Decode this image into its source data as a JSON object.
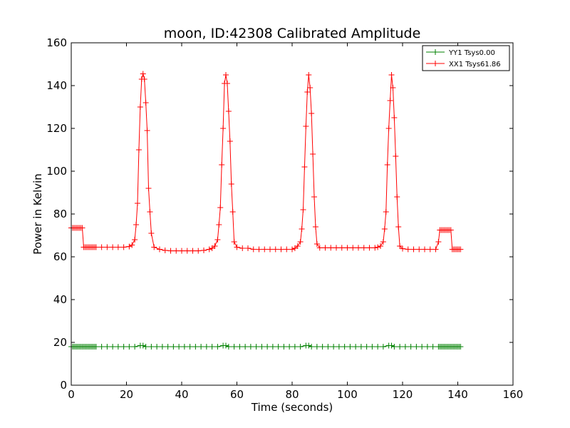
{
  "chart_data": {
    "type": "line",
    "title": "moon, ID:42308 Calibrated Amplitude",
    "xlabel": "Time (seconds)",
    "ylabel": "Power in Kelvin",
    "xlim": [
      0,
      160
    ],
    "ylim": [
      0,
      160
    ],
    "xticks": [
      0,
      20,
      40,
      60,
      80,
      100,
      120,
      140,
      160
    ],
    "yticks": [
      0,
      20,
      40,
      60,
      80,
      100,
      120,
      140,
      160
    ],
    "xtick_labels": [
      "0",
      "20",
      "40",
      "60",
      "80",
      "100",
      "120",
      "140",
      "160"
    ],
    "ytick_labels": [
      "0",
      "20",
      "40",
      "60",
      "80",
      "100",
      "120",
      "140",
      "160"
    ],
    "grid": false,
    "legend": {
      "position": "top-right"
    },
    "series": [
      {
        "name": "YY1 Tsys0.00",
        "color": "#008000",
        "marker": "+",
        "x": [
          0,
          0.5,
          1,
          1.5,
          2,
          2.5,
          3,
          3.5,
          4,
          4.5,
          5,
          5.5,
          6,
          6.5,
          7,
          7.5,
          8,
          8.5,
          9,
          11,
          13,
          15,
          17,
          19,
          21,
          23,
          25,
          26,
          27,
          29,
          31,
          33,
          35,
          37,
          39,
          41,
          43,
          45,
          47,
          49,
          51,
          53,
          55,
          56,
          57,
          59,
          61,
          63,
          65,
          67,
          69,
          71,
          73,
          75,
          77,
          79,
          81,
          83,
          85,
          86,
          87,
          89,
          91,
          93,
          95,
          97,
          99,
          101,
          103,
          105,
          107,
          109,
          111,
          113,
          115,
          116,
          117,
          119,
          121,
          123,
          125,
          127,
          129,
          131,
          133,
          133.5,
          134,
          134.5,
          135,
          135.5,
          136,
          136.5,
          137,
          137.5,
          138,
          138.5,
          139,
          139.5,
          140,
          140.5,
          141
        ],
        "y": [
          18,
          18,
          18,
          18,
          18,
          18,
          18,
          18,
          18,
          18,
          18,
          18,
          18,
          18,
          18,
          18,
          18,
          18,
          18,
          18,
          18,
          18,
          18,
          18,
          18,
          18,
          18.5,
          18.5,
          18,
          18,
          18,
          18,
          18,
          18,
          18,
          18,
          18,
          18,
          18,
          18,
          18,
          18,
          18.5,
          18.5,
          18,
          18,
          18,
          18,
          18,
          18,
          18,
          18,
          18,
          18,
          18,
          18,
          18,
          18,
          18.5,
          18.5,
          18,
          18,
          18,
          18,
          18,
          18,
          18,
          18,
          18,
          18,
          18,
          18,
          18,
          18,
          18.5,
          18.5,
          18,
          18,
          18,
          18,
          18,
          18,
          18,
          18,
          18,
          18,
          18,
          18,
          18,
          18,
          18,
          18,
          18,
          18,
          18,
          18,
          18,
          18,
          18,
          18,
          18
        ]
      },
      {
        "name": "XX1 Tsys61.86",
        "color": "#ff0000",
        "marker": "+",
        "x": [
          0,
          0.5,
          1,
          1.5,
          2,
          2.5,
          3,
          3.5,
          4,
          4.5,
          5,
          5.5,
          6,
          6.5,
          7,
          7.5,
          8,
          8.5,
          9,
          11,
          13,
          15,
          17,
          19,
          21,
          22,
          23,
          23.5,
          24,
          24.5,
          25,
          25.5,
          26,
          26.5,
          27,
          27.5,
          28,
          28.5,
          29,
          30,
          32,
          34,
          36,
          38,
          40,
          42,
          44,
          46,
          48,
          50,
          51,
          52,
          53,
          53.5,
          54,
          54.5,
          55,
          55.5,
          56,
          56.5,
          57,
          57.5,
          58,
          58.5,
          59,
          60,
          62,
          64,
          66,
          68,
          70,
          72,
          74,
          76,
          78,
          80,
          81,
          82,
          83,
          83.5,
          84,
          84.5,
          85,
          85.5,
          86,
          86.5,
          87,
          87.5,
          88,
          88.5,
          89,
          90,
          92,
          94,
          96,
          98,
          100,
          102,
          104,
          106,
          108,
          110,
          111,
          112,
          113,
          113.5,
          114,
          114.5,
          115,
          115.5,
          116,
          116.5,
          117,
          117.5,
          118,
          118.5,
          119,
          120,
          122,
          124,
          126,
          128,
          130,
          132,
          133,
          133.5,
          134,
          134.5,
          135,
          135.5,
          136,
          136.5,
          137,
          137.5,
          138,
          138.5,
          139,
          139.5,
          140,
          140.5,
          141
        ],
        "y": [
          73.5,
          73.5,
          73.5,
          73.5,
          73.5,
          73.5,
          73.5,
          73.5,
          73.5,
          64.5,
          64.5,
          64.5,
          64.5,
          64.5,
          64.5,
          64.5,
          64.5,
          64.5,
          64.5,
          64.5,
          64.5,
          64.5,
          64.5,
          64.5,
          64.8,
          65.5,
          68,
          75,
          85,
          110,
          130,
          143,
          145.5,
          143,
          132,
          119,
          92,
          81,
          71,
          64.5,
          63.5,
          63,
          62.8,
          62.8,
          62.8,
          62.8,
          62.8,
          62.8,
          63,
          63.5,
          64,
          65,
          68,
          75,
          83,
          103,
          120,
          141,
          145,
          141,
          128,
          114,
          94,
          81,
          67,
          64.5,
          64,
          64,
          63.5,
          63.5,
          63.5,
          63.5,
          63.5,
          63.5,
          63.5,
          63.5,
          64,
          65,
          67,
          73,
          82,
          102,
          121,
          137,
          145,
          139,
          127,
          108,
          88,
          74,
          66,
          64.2,
          64.2,
          64.2,
          64.2,
          64.2,
          64.2,
          64.2,
          64.2,
          64.2,
          64.2,
          64.2,
          64.5,
          65,
          67,
          73,
          81,
          103,
          120,
          133,
          145,
          139,
          125,
          107,
          88,
          74,
          65,
          63.8,
          63.5,
          63.5,
          63.5,
          63.5,
          63.5,
          63.5,
          67,
          72.5,
          72.5,
          72.5,
          72.5,
          72.5,
          72.5,
          72.5,
          72.5,
          72.5,
          63.5,
          63.5,
          63.5,
          63.5,
          63.5,
          63.5,
          63.5
        ]
      }
    ]
  }
}
